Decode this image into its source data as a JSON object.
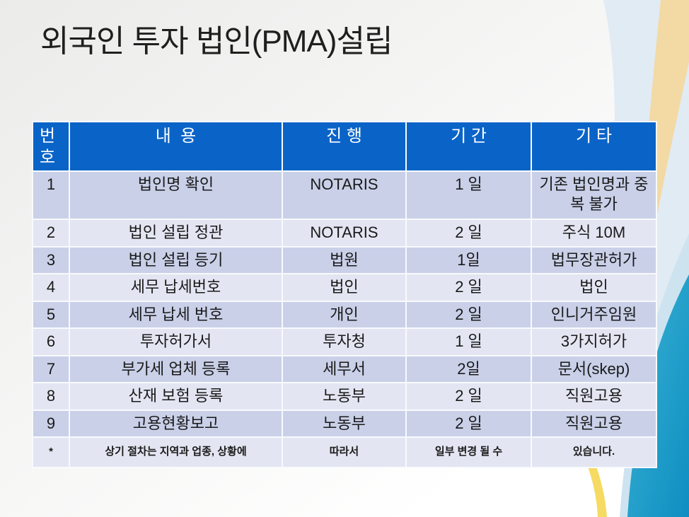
{
  "slide": {
    "title": "외국인 투자 법인(PMA)설립"
  },
  "table": {
    "headers": [
      "번호",
      "내  용",
      "진 행",
      "기 간",
      "기 타"
    ],
    "rows": [
      [
        "1",
        "법인명 확인",
        "NOTARIS",
        "1 일",
        "기존 법인명과 중복 불가"
      ],
      [
        "2",
        "법인 설립 정관",
        "NOTARIS",
        "2 일",
        "주식 10M"
      ],
      [
        "3",
        "법인 설립 등기",
        "법원",
        "1일",
        "법무장관허가"
      ],
      [
        "4",
        "세무 납세번호",
        "법인",
        "2 일",
        "법인"
      ],
      [
        "5",
        "세무 납세 번호",
        "개인",
        "2 일",
        "인니거주임원"
      ],
      [
        "6",
        "투자허가서",
        "투자청",
        "1 일",
        "3가지허가"
      ],
      [
        "7",
        "부가세 업체 등록",
        "세무서",
        "2일",
        "문서(skep)"
      ],
      [
        "8",
        "산재 보험 등록",
        "노동부",
        "2 일",
        "직원고용"
      ],
      [
        "9",
        "고용현황보고",
        "노동부",
        "2 일",
        "직원고용"
      ],
      [
        "*",
        "상기 절차는 지역과 업종, 상황에",
        "따라서",
        "일부 변경 될 수",
        "있습니다."
      ]
    ]
  },
  "theme": {
    "header_bg": "#0a64c8",
    "header_text": "#ffffff",
    "row_odd_bg": "#c9d0e8",
    "row_even_bg": "#e3e6f2",
    "divider": "#f8fafd",
    "body_text": "#1a1a1a",
    "title_text": "#1f1f1f",
    "accent_tan_band": "#f3d9a4",
    "accent_light_blue_band": "#e1ebf4",
    "accent_teal_top": "#3bb3d4",
    "accent_teal_bottom": "#0e8ec1",
    "accent_yellow_stripe": "#f6da62"
  }
}
